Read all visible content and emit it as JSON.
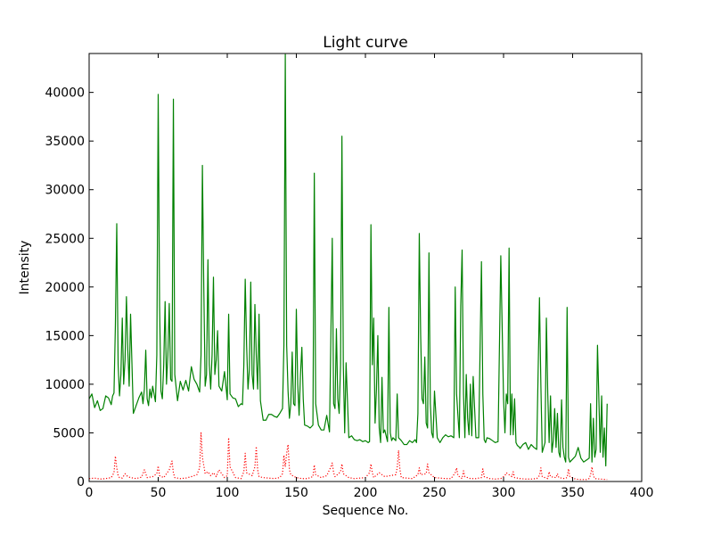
{
  "chart_data": {
    "type": "line",
    "title": "Light curve",
    "xlabel": "Sequence No.",
    "ylabel": "Intensity",
    "xlim": [
      0,
      400
    ],
    "ylim": [
      0,
      44000
    ],
    "xticks": [
      0,
      50,
      100,
      150,
      200,
      250,
      300,
      350,
      400
    ],
    "yticks": [
      0,
      5000,
      10000,
      15000,
      20000,
      25000,
      30000,
      35000,
      40000
    ],
    "grid": false,
    "legend": "none",
    "series": [
      {
        "color": "#008000",
        "style": "solid",
        "x": [
          0,
          2,
          4,
          6,
          8,
          10,
          12,
          14,
          16,
          17,
          18,
          19,
          20,
          21,
          22,
          23,
          24,
          25,
          26,
          27,
          28,
          29,
          30,
          32,
          34,
          36,
          38,
          39,
          40,
          41,
          42,
          43,
          44,
          45,
          46,
          48,
          49,
          50,
          51,
          52,
          53,
          54,
          55,
          56,
          57,
          58,
          59,
          60,
          61,
          62,
          64,
          66,
          68,
          70,
          72,
          74,
          76,
          78,
          80,
          81,
          82,
          83,
          84,
          85,
          86,
          87,
          88,
          89,
          90,
          91,
          92,
          93,
          94,
          96,
          98,
          100,
          101,
          102,
          104,
          106,
          108,
          110,
          111,
          112,
          113,
          114,
          115,
          116,
          117,
          118,
          119,
          120,
          121,
          122,
          123,
          124,
          126,
          128,
          130,
          132,
          134,
          136,
          138,
          140,
          141,
          142,
          143,
          144,
          145,
          146,
          147,
          148,
          149,
          150,
          151,
          152,
          153,
          154,
          155,
          156,
          158,
          160,
          162,
          163,
          164,
          166,
          168,
          170,
          172,
          174,
          175,
          176,
          177,
          178,
          179,
          180,
          181,
          182,
          183,
          184,
          185,
          186,
          188,
          190,
          192,
          194,
          196,
          198,
          200,
          202,
          203,
          204,
          205,
          206,
          207,
          208,
          209,
          210,
          211,
          212,
          213,
          214,
          216,
          217,
          218,
          219,
          220,
          222,
          223,
          224,
          226,
          228,
          230,
          232,
          234,
          236,
          237,
          238,
          239,
          240,
          241,
          242,
          243,
          244,
          245,
          246,
          247,
          248,
          249,
          250,
          252,
          254,
          256,
          258,
          260,
          262,
          264,
          265,
          266,
          268,
          269,
          270,
          271,
          272,
          273,
          274,
          275,
          276,
          277,
          278,
          280,
          282,
          284,
          285,
          286,
          287,
          288,
          290,
          292,
          294,
          296,
          298,
          300,
          301,
          302,
          303,
          304,
          305,
          306,
          307,
          308,
          309,
          310,
          311,
          312,
          314,
          316,
          318,
          320,
          322,
          324,
          326,
          327,
          328,
          330,
          331,
          332,
          333,
          334,
          335,
          336,
          337,
          338,
          339,
          340,
          341,
          342,
          343,
          344,
          345,
          346,
          347,
          348,
          350,
          352,
          354,
          356,
          358,
          360,
          362,
          363,
          364,
          365,
          366,
          367,
          368,
          369,
          370,
          371,
          372,
          373,
          374,
          375
        ],
        "y": [
          8500,
          9000,
          7600,
          8300,
          7300,
          7500,
          8800,
          8600,
          7900,
          8800,
          9100,
          16000,
          26500,
          12000,
          8800,
          11000,
          16800,
          10000,
          12500,
          19000,
          13500,
          9800,
          17200,
          7000,
          7800,
          8600,
          9200,
          8000,
          9500,
          13500,
          8500,
          7800,
          9500,
          8600,
          9800,
          8200,
          13000,
          39800,
          18000,
          9300,
          8500,
          12000,
          18500,
          10000,
          13000,
          18300,
          10500,
          10300,
          39300,
          11000,
          8300,
          10300,
          9400,
          10400,
          9300,
          11800,
          10500,
          10000,
          9200,
          13000,
          32500,
          20000,
          9800,
          11000,
          22800,
          12000,
          9500,
          13000,
          21000,
          11000,
          12500,
          15500,
          9800,
          9300,
          11300,
          8400,
          17200,
          9000,
          8600,
          8500,
          7700,
          8000,
          7900,
          12000,
          20800,
          14000,
          9500,
          11500,
          20500,
          11000,
          9500,
          18200,
          13000,
          9500,
          17200,
          8300,
          6300,
          6300,
          6900,
          6900,
          6700,
          6600,
          7000,
          7500,
          14000,
          43900,
          14000,
          9300,
          6500,
          8000,
          13300,
          8000,
          7800,
          17700,
          10000,
          6800,
          11000,
          13800,
          8500,
          5800,
          5700,
          5500,
          5800,
          31700,
          8000,
          5800,
          5300,
          5300,
          6800,
          5100,
          15000,
          25000,
          8000,
          7500,
          15700,
          8500,
          7000,
          12000,
          35500,
          12000,
          5000,
          12200,
          4500,
          4700,
          4300,
          4200,
          4300,
          4100,
          4200,
          4000,
          4100,
          26400,
          12000,
          16800,
          6000,
          9500,
          15000,
          5500,
          4000,
          10700,
          5000,
          5300,
          4100,
          17900,
          5000,
          4200,
          4500,
          4200,
          9000,
          4500,
          4200,
          3800,
          3800,
          4200,
          4000,
          4300,
          4000,
          7000,
          25500,
          15000,
          8500,
          8000,
          12800,
          6000,
          5500,
          23500,
          8000,
          5000,
          4500,
          9300,
          4500,
          4000,
          4500,
          4800,
          4600,
          4700,
          4500,
          20000,
          9000,
          4500,
          18000,
          23800,
          9000,
          4500,
          11000,
          6500,
          4800,
          10000,
          4700,
          10800,
          4500,
          4500,
          22600,
          9000,
          4300,
          4000,
          4500,
          4400,
          4200,
          4000,
          4100,
          23200,
          8500,
          5000,
          9000,
          8000,
          24000,
          4800,
          9000,
          4800,
          8500,
          4000,
          3700,
          3600,
          3400,
          3800,
          4000,
          3300,
          3800,
          3500,
          3300,
          18900,
          10000,
          3000,
          4000,
          16800,
          9000,
          4000,
          8800,
          3000,
          4200,
          7500,
          3500,
          7000,
          3000,
          2500,
          8400,
          3500,
          2500,
          2000,
          17900,
          2500,
          2000,
          2300,
          2600,
          3500,
          2400,
          2000,
          2200,
          2400,
          8000,
          2000,
          6500,
          2500,
          3300,
          14000,
          8500,
          3000,
          8800,
          2500,
          5500,
          1600,
          8000
        ]
      },
      {
        "color": "#ff0000",
        "style": "dotted",
        "x": [
          0,
          4,
          8,
          12,
          16,
          18,
          19,
          20,
          21,
          22,
          24,
          26,
          28,
          30,
          34,
          38,
          40,
          41,
          42,
          46,
          49,
          50,
          51,
          54,
          56,
          58,
          60,
          61,
          62,
          66,
          70,
          74,
          78,
          80,
          81,
          82,
          84,
          86,
          88,
          90,
          92,
          94,
          98,
          100,
          101,
          102,
          106,
          110,
          112,
          113,
          114,
          118,
          120,
          121,
          122,
          123,
          126,
          130,
          134,
          138,
          140,
          141,
          142,
          143,
          144,
          145,
          146,
          150,
          154,
          158,
          162,
          163,
          164,
          168,
          172,
          175,
          176,
          177,
          178,
          182,
          183,
          184,
          188,
          192,
          196,
          200,
          203,
          204,
          205,
          206,
          210,
          214,
          218,
          222,
          223,
          224,
          225,
          226,
          230,
          234,
          238,
          239,
          240,
          244,
          245,
          246,
          250,
          254,
          258,
          262,
          265,
          266,
          267,
          270,
          271,
          272,
          276,
          280,
          284,
          285,
          286,
          290,
          294,
          298,
          301,
          302,
          306,
          307,
          308,
          312,
          316,
          320,
          324,
          326,
          327,
          328,
          332,
          333,
          334,
          338,
          339,
          340,
          344,
          346,
          347,
          348,
          352,
          356,
          360,
          362,
          363,
          364,
          365,
          366,
          370,
          375
        ],
        "y": [
          300,
          350,
          250,
          300,
          400,
          900,
          2600,
          1400,
          600,
          400,
          350,
          800,
          500,
          400,
          300,
          450,
          1200,
          800,
          400,
          500,
          800,
          1600,
          600,
          400,
          800,
          1200,
          2100,
          900,
          400,
          300,
          350,
          500,
          700,
          1400,
          5000,
          2500,
          800,
          1000,
          600,
          900,
          500,
          1200,
          400,
          600,
          4500,
          1500,
          400,
          300,
          1000,
          2900,
          900,
          600,
          1500,
          3600,
          1200,
          500,
          400,
          350,
          300,
          400,
          800,
          2700,
          1500,
          2900,
          3800,
          1200,
          700,
          400,
          300,
          300,
          500,
          1700,
          700,
          400,
          600,
          1500,
          1900,
          900,
          500,
          1000,
          1800,
          800,
          400,
          300,
          350,
          400,
          900,
          1800,
          900,
          400,
          900,
          500,
          600,
          700,
          1400,
          3200,
          1200,
          400,
          350,
          300,
          700,
          1400,
          700,
          800,
          1800,
          900,
          400,
          350,
          300,
          300,
          900,
          1400,
          600,
          300,
          1100,
          500,
          300,
          300,
          400,
          1300,
          500,
          300,
          250,
          300,
          600,
          900,
          500,
          1000,
          400,
          300,
          250,
          250,
          300,
          600,
          1400,
          500,
          300,
          1000,
          500,
          400,
          800,
          400,
          300,
          400,
          1300,
          500,
          250,
          200,
          200,
          300,
          700,
          1500,
          600,
          300,
          250,
          200
        ]
      }
    ]
  }
}
